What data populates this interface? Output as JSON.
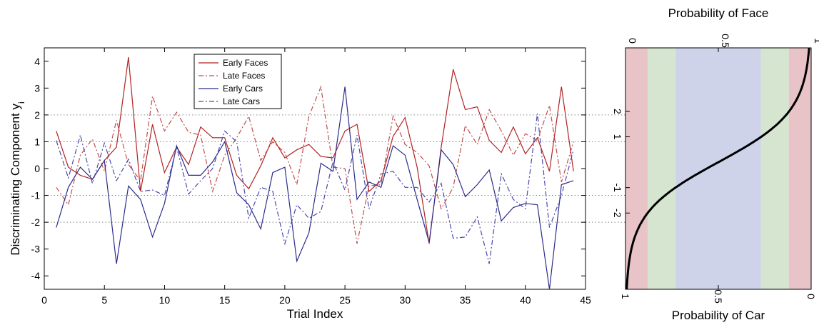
{
  "chart_data": [
    {
      "type": "line",
      "xlabel": "Trial Index",
      "ylabel": "Discriminating Component y",
      "ylabel_subscript": "i",
      "xlim": [
        0,
        45
      ],
      "ylim": [
        -4.5,
        4.5
      ],
      "xticks": [
        "0",
        "5",
        "10",
        "15",
        "20",
        "25",
        "30",
        "35",
        "40",
        "45"
      ],
      "yticks": [
        "-4",
        "-3",
        "-2",
        "-1",
        "0",
        "1",
        "2",
        "3",
        "4"
      ],
      "reference_lines": [
        2,
        1,
        -1,
        -2
      ],
      "legend_position": "top-center",
      "x": [
        1,
        2,
        3,
        4,
        5,
        6,
        7,
        8,
        9,
        10,
        11,
        12,
        13,
        14,
        15,
        16,
        17,
        18,
        19,
        20,
        21,
        22,
        23,
        24,
        25,
        26,
        27,
        28,
        29,
        30,
        31,
        32,
        33,
        34,
        35,
        36,
        37,
        38,
        39,
        40,
        41,
        42,
        43,
        44
      ],
      "series": [
        {
          "name": "Early Faces",
          "color": "#b22222",
          "dash": "solid",
          "values": [
            1.4,
            0.05,
            -0.25,
            -0.4,
            0.3,
            0.8,
            4.15,
            -0.85,
            1.65,
            -0.15,
            0.8,
            0.15,
            1.55,
            1.15,
            1.15,
            -0.25,
            -0.75,
            0.1,
            1.15,
            0.4,
            0.7,
            0.9,
            0.45,
            0.4,
            1.4,
            1.65,
            -0.85,
            -0.45,
            1.2,
            1.9,
            0.05,
            -2.8,
            0.8,
            3.7,
            2.2,
            2.3,
            1.05,
            0.6,
            1.55,
            0.55,
            1.15,
            -0.1,
            3.05,
            -0.1
          ]
        },
        {
          "name": "Late Faces",
          "color": "#c0504d",
          "dash": "dashdot",
          "values": [
            -0.7,
            -1.35,
            0.5,
            1.1,
            -0.1,
            1.8,
            0.15,
            -0.45,
            2.7,
            1.4,
            2.1,
            1.35,
            1.25,
            -0.85,
            0.5,
            1.15,
            1.95,
            0.3,
            1.0,
            0.6,
            -0.6,
            1.95,
            3.05,
            0.05,
            0.0,
            -2.8,
            -0.65,
            -0.6,
            1.95,
            0.9,
            0.6,
            0.1,
            -1.5,
            -0.7,
            1.6,
            0.9,
            2.2,
            1.4,
            0.5,
            1.3,
            1.05,
            2.35,
            -0.5,
            1.0
          ]
        },
        {
          "name": "Early Cars",
          "color": "#2b2d8a",
          "dash": "solid",
          "values": [
            -2.2,
            -0.7,
            0.05,
            -0.4,
            0.3,
            -3.55,
            -0.65,
            -1.15,
            -2.55,
            -1.3,
            0.85,
            -0.25,
            -0.25,
            0.25,
            1.0,
            -0.9,
            -1.35,
            -2.25,
            -0.15,
            0.05,
            -3.45,
            -2.4,
            0.2,
            -0.1,
            3.05,
            -1.15,
            -0.5,
            -0.7,
            0.85,
            0.5,
            -1.15,
            -2.75,
            0.7,
            0.15,
            -1.05,
            -0.6,
            -0.05,
            -1.95,
            -1.45,
            -1.3,
            -1.35,
            -4.5,
            -0.6,
            -0.45
          ]
        },
        {
          "name": "Late Cars",
          "color": "#4a4ab0",
          "dash": "dashdot",
          "values": [
            1.05,
            -0.35,
            1.25,
            -0.55,
            0.95,
            -0.45,
            0.35,
            -0.85,
            -0.8,
            -1.0,
            0.8,
            -0.95,
            -0.45,
            0.0,
            1.4,
            1.0,
            -1.85,
            -0.7,
            -0.85,
            -2.8,
            -1.35,
            -1.85,
            -1.6,
            0.25,
            -0.8,
            1.25,
            -1.5,
            -0.2,
            -0.1,
            -0.7,
            -0.7,
            -1.25,
            -0.55,
            -2.6,
            -2.55,
            -1.8,
            -3.55,
            -0.2,
            -1.15,
            -1.5,
            2.05,
            -2.2,
            -1.0,
            0.7
          ]
        }
      ]
    },
    {
      "type": "line",
      "title": "Probability of Face",
      "xlabel": "Probability of Car",
      "top_ticks": [
        "0",
        "0.5",
        "1"
      ],
      "bottom_ticks": [
        "1",
        "0.5",
        "0"
      ],
      "left_ticks": [
        "2",
        "1",
        "-1",
        "-2"
      ],
      "curve": "logistic: P(face) = 1 / (1 + exp(-y))",
      "ylim": [
        -5,
        4.5
      ],
      "bands": [
        {
          "from": 0.0,
          "to": 0.12,
          "color": "#e8c4c8"
        },
        {
          "from": 0.12,
          "to": 0.27,
          "color": "#d5e5cf"
        },
        {
          "from": 0.27,
          "to": 0.73,
          "color": "#cfd3ea"
        },
        {
          "from": 0.73,
          "to": 0.88,
          "color": "#d5e5cf"
        },
        {
          "from": 0.88,
          "to": 1.0,
          "color": "#e8c4c8"
        }
      ],
      "reference_lines": [
        2,
        1,
        -1,
        -2
      ]
    }
  ]
}
